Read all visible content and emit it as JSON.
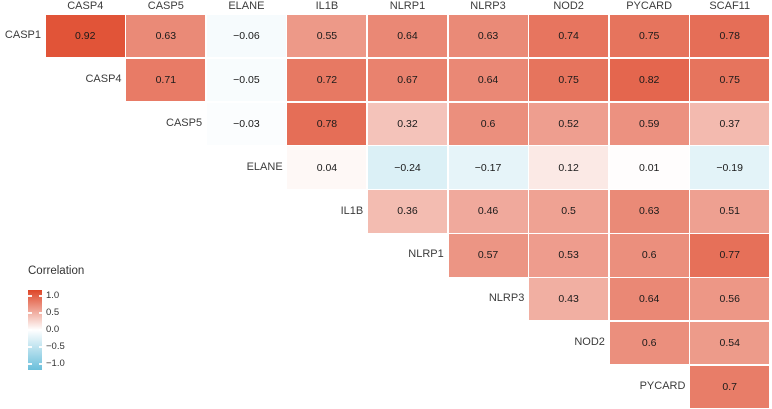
{
  "figure": {
    "background": "#ffffff"
  },
  "chart_data": {
    "type": "heatmap",
    "variant": "upper-triangle-correlation-matrix",
    "grid": "white gaps between tiles, no axis lines",
    "columns": [
      "CASP4",
      "CASP5",
      "ELANE",
      "IL1B",
      "NLRP1",
      "NLRP3",
      "NOD2",
      "PYCARD",
      "SCAF11"
    ],
    "rows": [
      {
        "label": "CASP1",
        "values": [
          0.92,
          0.63,
          -0.06,
          0.55,
          0.64,
          0.63,
          0.74,
          0.75,
          0.78
        ]
      },
      {
        "label": "CASP4",
        "values": [
          0.71,
          -0.05,
          0.72,
          0.67,
          0.64,
          0.75,
          0.82,
          0.75
        ]
      },
      {
        "label": "CASP5",
        "values": [
          -0.03,
          0.78,
          0.32,
          0.6,
          0.52,
          0.59,
          0.37
        ]
      },
      {
        "label": "ELANE",
        "values": [
          0.04,
          -0.24,
          -0.17,
          0.12,
          0.01,
          -0.19
        ]
      },
      {
        "label": "IL1B",
        "values": [
          0.36,
          0.46,
          0.5,
          0.63,
          0.51
        ]
      },
      {
        "label": "NLRP1",
        "values": [
          0.57,
          0.53,
          0.6,
          0.77
        ]
      },
      {
        "label": "NLRP3",
        "values": [
          0.43,
          0.64,
          0.56
        ]
      },
      {
        "label": "NOD2",
        "values": [
          0.6,
          0.54
        ]
      },
      {
        "label": "PYCARD",
        "values": [
          0.7
        ]
      }
    ],
    "colorscale": {
      "positive_end": "#DE4527",
      "midpoint": "#FFFFFF",
      "negative_end": "#6ABFDB",
      "domain": [
        -1,
        1
      ]
    },
    "legend": {
      "title": "Correlation",
      "tick_labels": [
        "1.0",
        "0.5",
        "0.0",
        "−0.5",
        "−1.0"
      ],
      "tick_values": [
        1.0,
        0.5,
        0.0,
        -0.5,
        -1.0
      ],
      "position": "bottom-left"
    }
  }
}
